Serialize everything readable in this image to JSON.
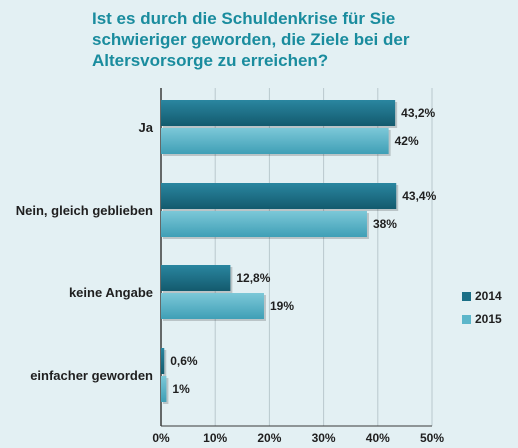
{
  "chart_data": {
    "type": "bar",
    "orientation": "horizontal",
    "title_lines": [
      "Ist es durch die Schuldenkrise für Sie",
      "schwieriger geworden, die Ziele bei der",
      "Altersvorsorge zu erreichen?"
    ],
    "categories": [
      "Ja",
      "Nein, gleich geblieben",
      "keine Angabe",
      "einfacher geworden"
    ],
    "series": [
      {
        "name": "2014",
        "color": "#1b6f86",
        "values": [
          43.2,
          43.4,
          12.8,
          0.6
        ],
        "labels": [
          "43,2%",
          "43,4%",
          "12,8%",
          "0,6%"
        ]
      },
      {
        "name": "2015",
        "color": "#5cb6ca",
        "values": [
          42,
          38,
          19,
          1
        ],
        "labels": [
          "42%",
          "38%",
          "19%",
          "1%"
        ]
      }
    ],
    "xlim": [
      0,
      50
    ],
    "xticks": [
      0,
      10,
      20,
      30,
      40,
      50
    ],
    "xtick_labels": [
      "0%",
      "10%",
      "20%",
      "30%",
      "40%",
      "50%"
    ],
    "grid": true,
    "legend_position": "right"
  },
  "colors": {
    "background": "#e3f0f3",
    "title": "#1a8c9e",
    "grid": "#b9c9cd"
  }
}
